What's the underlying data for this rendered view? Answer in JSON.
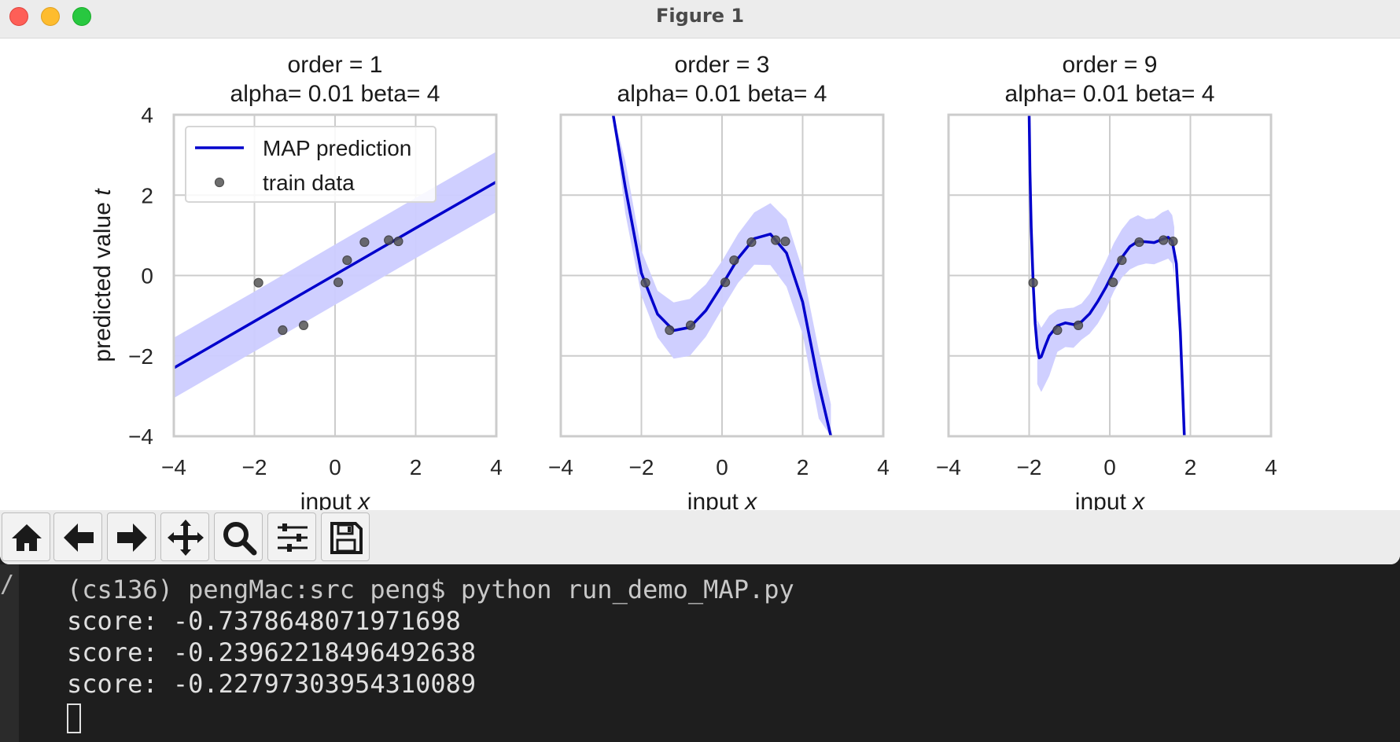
{
  "window": {
    "title": "Figure 1"
  },
  "chart_data": [
    {
      "type": "line",
      "title": "order = 1",
      "subtitle": "alpha= 0.01  beta= 4",
      "xlabel": "input x",
      "ylabel": "predicted value t",
      "xlim": [
        -4,
        4
      ],
      "ylim": [
        -4,
        4
      ],
      "xticks": [
        "−4",
        "−2",
        "0",
        "2",
        "4"
      ],
      "yticks": [
        "4",
        "2",
        "0",
        "−2",
        "−4"
      ],
      "grid": true,
      "legend": {
        "placement": "top-left",
        "entries": [
          "MAP prediction",
          "train data"
        ]
      },
      "series": [
        {
          "name": "MAP prediction",
          "x": [
            -4,
            -2,
            0,
            2,
            4
          ],
          "y": [
            -2.3,
            -1.14,
            0.02,
            1.18,
            2.33
          ]
        },
        {
          "name": "band",
          "x": [
            -4,
            -2,
            0,
            2,
            4
          ],
          "upper": [
            -1.55,
            -0.4,
            0.77,
            1.93,
            3.08
          ],
          "lower": [
            -3.05,
            -1.89,
            -0.73,
            0.43,
            1.58
          ]
        },
        {
          "name": "train data",
          "x": [
            -1.9,
            -1.3,
            -0.78,
            0.08,
            0.3,
            0.73,
            1.33,
            1.57
          ],
          "y": [
            -0.18,
            -1.36,
            -1.24,
            -0.17,
            0.38,
            0.83,
            0.88,
            0.85
          ]
        }
      ]
    },
    {
      "type": "line",
      "title": "order = 3",
      "subtitle": "alpha= 0.01  beta= 4",
      "xlabel": "input x",
      "ylabel": "",
      "xlim": [
        -4,
        4
      ],
      "ylim": [
        -4,
        4
      ],
      "xticks": [
        "−4",
        "−2",
        "0",
        "2",
        "4"
      ],
      "yticks": [],
      "grid": true,
      "series": [
        {
          "name": "MAP prediction",
          "x": [
            -2.7,
            -2.4,
            -2,
            -1.6,
            -1.2,
            -0.8,
            -0.4,
            0,
            0.4,
            0.8,
            1.2,
            1.6,
            2,
            2.4,
            2.7
          ],
          "y": [
            4,
            2.2,
            0.06,
            -0.96,
            -1.37,
            -1.29,
            -0.87,
            -0.24,
            0.43,
            0.92,
            1.03,
            0.56,
            -0.66,
            -2.71,
            -4
          ]
        },
        {
          "name": "band",
          "x": [
            -2.7,
            -2.4,
            -2,
            -1.6,
            -1.2,
            -0.8,
            -0.4,
            0,
            0.4,
            0.8,
            1.2,
            1.6,
            2,
            2.4,
            2.7
          ],
          "upper": [
            4,
            2.85,
            0.62,
            -0.38,
            -0.67,
            -0.58,
            -0.22,
            0.36,
            1.04,
            1.57,
            1.8,
            1.4,
            0.14,
            -1.86,
            -3.2
          ],
          "lower": [
            4,
            1.55,
            -0.5,
            -1.54,
            -2.07,
            -2.0,
            -1.52,
            -0.84,
            -0.18,
            0.27,
            0.26,
            -0.28,
            -1.46,
            -3.56,
            -4
          ]
        },
        {
          "name": "train data",
          "x": [
            -1.9,
            -1.3,
            -0.78,
            0.08,
            0.3,
            0.73,
            1.33,
            1.57
          ],
          "y": [
            -0.18,
            -1.36,
            -1.24,
            -0.17,
            0.38,
            0.83,
            0.88,
            0.85
          ]
        }
      ]
    },
    {
      "type": "line",
      "title": "order = 9",
      "subtitle": "alpha= 0.01  beta= 4",
      "xlabel": "input x",
      "ylabel": "",
      "xlim": [
        -4,
        4
      ],
      "ylim": [
        -4,
        4
      ],
      "xticks": [
        "−4",
        "−2",
        "0",
        "2",
        "4"
      ],
      "yticks": [],
      "grid": true,
      "series": [
        {
          "name": "MAP prediction",
          "x": [
            -2.0,
            -1.98,
            -1.95,
            -1.9,
            -1.85,
            -1.8,
            -1.75,
            -1.7,
            -1.6,
            -1.5,
            -1.3,
            -1.1,
            -0.9,
            -0.7,
            -0.5,
            -0.3,
            -0.1,
            0.1,
            0.3,
            0.5,
            0.7,
            0.9,
            1.1,
            1.3,
            1.45,
            1.55,
            1.65,
            1.75,
            1.8,
            1.85
          ],
          "y": [
            4,
            2.6,
            1.2,
            -0.2,
            -1.2,
            -1.8,
            -2.05,
            -2.02,
            -1.75,
            -1.5,
            -1.25,
            -1.18,
            -1.22,
            -1.15,
            -0.95,
            -0.65,
            -0.3,
            0.1,
            0.45,
            0.72,
            0.85,
            0.84,
            0.82,
            0.9,
            0.95,
            0.85,
            0.3,
            -1.4,
            -2.7,
            -4
          ]
        },
        {
          "name": "band",
          "x": [
            -1.8,
            -1.7,
            -1.5,
            -1.3,
            -1.1,
            -0.9,
            -0.7,
            -0.5,
            -0.3,
            -0.1,
            0.1,
            0.3,
            0.5,
            0.7,
            0.9,
            1.1,
            1.3,
            1.45,
            1.55,
            1.6
          ],
          "upper": [
            -1.1,
            -1.3,
            -1.0,
            -0.85,
            -0.82,
            -0.8,
            -0.7,
            -0.45,
            -0.05,
            0.35,
            0.8,
            1.15,
            1.4,
            1.5,
            1.4,
            1.42,
            1.57,
            1.64,
            1.5,
            1.2
          ],
          "lower": [
            -2.7,
            -2.9,
            -2.5,
            -1.9,
            -1.78,
            -1.8,
            -1.6,
            -1.45,
            -1.2,
            -0.85,
            -0.4,
            -0.05,
            0.15,
            0.25,
            0.3,
            0.28,
            0.36,
            0.42,
            0.3,
            0.0
          ]
        },
        {
          "name": "train data",
          "x": [
            -1.9,
            -1.3,
            -0.78,
            0.08,
            0.3,
            0.73,
            1.33,
            1.57
          ],
          "y": [
            -0.18,
            -1.36,
            -1.24,
            -0.17,
            0.38,
            0.83,
            0.88,
            0.85
          ]
        }
      ]
    }
  ],
  "colors": {
    "line": "#0000cc",
    "band": "#ccccff",
    "point": "#555555",
    "grid": "#cccccc",
    "axes_edge": "#cccccc"
  },
  "toolbar": {
    "buttons": [
      "home-icon",
      "back-arrow-icon",
      "forward-arrow-icon",
      "pan-icon",
      "zoom-icon",
      "configure-subplots-icon",
      "save-icon"
    ]
  },
  "terminal": {
    "gutter_glyph": "/",
    "lines": [
      "(cs136) pengMac:src peng$ python run_demo_MAP.py",
      "score: -0.7378648071971698",
      "score: -0.23962218496492638",
      "score: -0.22797303954310089"
    ]
  }
}
